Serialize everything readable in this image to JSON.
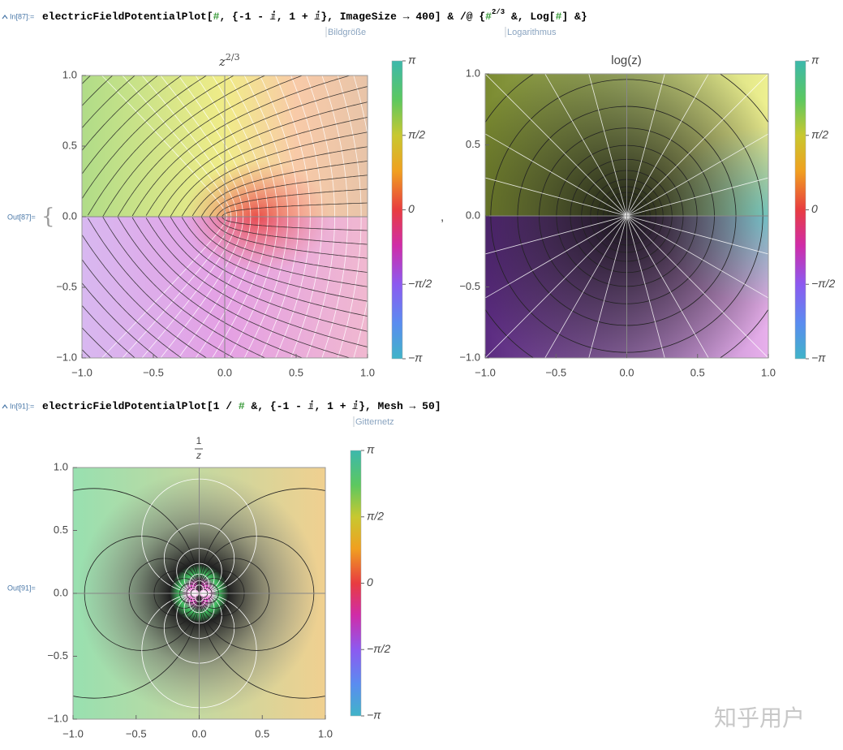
{
  "cells": [
    {
      "in_label": "In[87]:=",
      "code": [
        "electricFieldPotentialPlot[",
        "#",
        ", {-1 - ⅈ, 1 + ⅈ}, ImageSize → 400] & /@ {",
        "#",
        "2/3",
        " &, Log[",
        "#",
        "] &}"
      ],
      "tooltips": [
        "Bildgröße",
        "Logarithmus"
      ],
      "out_label": "Out[87]=",
      "brace": "{",
      "separator": ","
    },
    {
      "in_label": "In[91]:=",
      "code": [
        "electricFieldPotentialPlot[1 / ",
        "#",
        " &, {-1 - ⅈ, 1 + ⅈ}, Mesh → 50]"
      ],
      "tooltips": [
        "Gitternetz"
      ],
      "out_label": "Out[91]="
    }
  ],
  "plots": [
    {
      "title": {
        "base": "z",
        "sup": "2/3"
      },
      "xlim": [
        -1,
        1
      ],
      "ylim": [
        -1,
        1
      ],
      "xticks": [
        {
          "value": -1,
          "label": "−1.0"
        },
        {
          "value": -0.5,
          "label": "−0.5"
        },
        {
          "value": 0,
          "label": "0.0"
        },
        {
          "value": 0.5,
          "label": "0.5"
        },
        {
          "value": 1,
          "label": "1.0"
        }
      ],
      "yticks": [
        {
          "value": -1,
          "label": "−1.0"
        },
        {
          "value": -0.5,
          "label": "−0.5"
        },
        {
          "value": 0,
          "label": "0.0"
        },
        {
          "value": 0.5,
          "label": "0.5"
        },
        {
          "value": 1,
          "label": "1.0"
        }
      ],
      "clim": [
        -3.1416,
        3.1416
      ],
      "cticks": [
        {
          "value": 3.1416,
          "label": "π"
        },
        {
          "value": 1.5708,
          "label": "π/2"
        },
        0,
        {
          "value": -1.5708,
          "label": "−π/2"
        },
        {
          "value": -3.1416,
          "label": "−π"
        }
      ]
    },
    {
      "title": {
        "text": "log(z)"
      },
      "xlim": [
        -1,
        1
      ],
      "ylim": [
        -1,
        1
      ],
      "xticks": [
        {
          "value": -1,
          "label": "−1.0"
        },
        {
          "value": -0.5,
          "label": "−0.5"
        },
        {
          "value": 0,
          "label": "0.0"
        },
        {
          "value": 0.5,
          "label": "0.5"
        },
        {
          "value": 1,
          "label": "1.0"
        }
      ],
      "yticks": [
        {
          "value": -1,
          "label": "−1.0"
        },
        {
          "value": -0.5,
          "label": "−0.5"
        },
        {
          "value": 0,
          "label": "0.0"
        },
        {
          "value": 0.5,
          "label": "0.5"
        },
        {
          "value": 1,
          "label": "1.0"
        }
      ],
      "clim": [
        -3.1416,
        3.1416
      ],
      "cticks": [
        {
          "value": 3.1416,
          "label": "π"
        },
        {
          "value": 1.5708,
          "label": "π/2"
        },
        0,
        {
          "value": -1.5708,
          "label": "−π/2"
        },
        {
          "value": -3.1416,
          "label": "−π"
        }
      ]
    },
    {
      "title": {
        "num": "1",
        "den": "z"
      },
      "xlim": [
        -1,
        1
      ],
      "ylim": [
        -1,
        1
      ],
      "xticks": [
        {
          "value": -1,
          "label": "−1.0"
        },
        {
          "value": -0.5,
          "label": "−0.5"
        },
        {
          "value": 0,
          "label": "0.0"
        },
        {
          "value": 0.5,
          "label": "0.5"
        },
        {
          "value": 1,
          "label": "1.0"
        }
      ],
      "yticks": [
        {
          "value": -1,
          "label": "−1.0"
        },
        {
          "value": -0.5,
          "label": "−0.5"
        },
        {
          "value": 0,
          "label": "0.0"
        },
        {
          "value": 0.5,
          "label": "0.5"
        },
        {
          "value": 1,
          "label": "1.0"
        }
      ],
      "clim": [
        -3.1416,
        3.1416
      ],
      "cticks": [
        {
          "value": 3.1416,
          "label": "π"
        },
        {
          "value": 1.5708,
          "label": "π/2"
        },
        0,
        {
          "value": -1.5708,
          "label": "−π/2"
        },
        {
          "value": -3.1416,
          "label": "−π"
        }
      ]
    }
  ],
  "watermark": "知乎用户"
}
